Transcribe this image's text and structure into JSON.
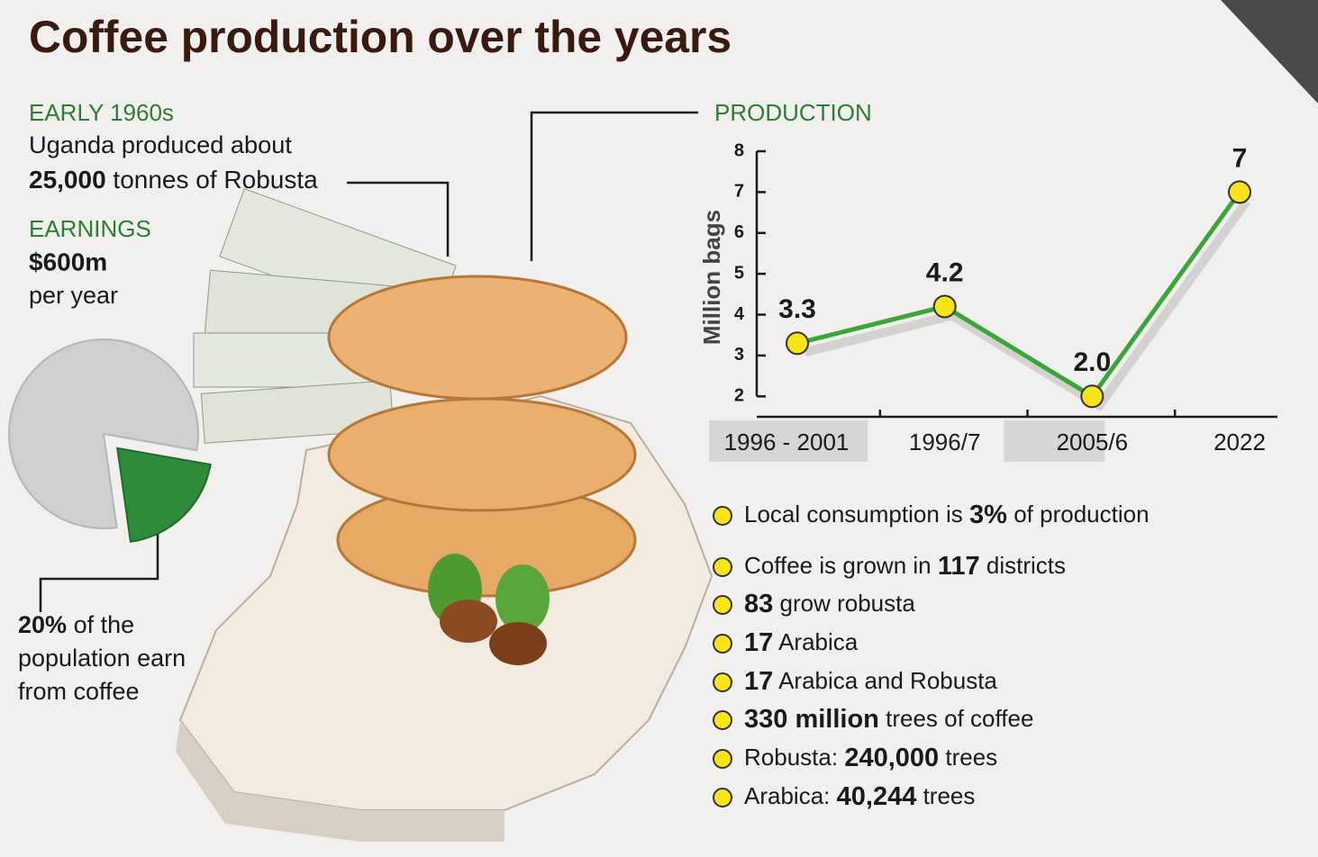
{
  "title": "Coffee production over the years",
  "early": {
    "heading": "EARLY 1960s",
    "line1": "Uganda produced about",
    "amount": "25,000",
    "line2": "tonnes of Robusta"
  },
  "earnings": {
    "heading": "EARNINGS",
    "amount": "$600m",
    "line": "per year"
  },
  "chart_data": [
    {
      "type": "pie",
      "values": [
        80,
        20
      ],
      "value_labels": [
        null,
        "20%"
      ],
      "colors": [
        "#cfcfcf",
        "#2e8b3a"
      ],
      "caption": [
        "of the",
        "population earn",
        "from coffee"
      ]
    },
    {
      "type": "line",
      "title": "PRODUCTION",
      "y_label": "Million bags",
      "categories": [
        "1996 - 2001",
        "1996/7",
        "2005/6",
        "2022"
      ],
      "series": [
        {
          "color": "#3aa63a",
          "values": [
            3.3,
            4.2,
            2.0,
            7
          ],
          "value_labels": [
            "3.3",
            "4.2",
            "2.0",
            "7"
          ]
        }
      ],
      "ylim": [
        1.5,
        8
      ],
      "yticks": [
        2,
        3,
        4,
        5,
        6,
        7,
        8
      ]
    }
  ],
  "facts": [
    {
      "before": "Local consumption is",
      "bold": "3%",
      "after": "of production"
    },
    {
      "before": "Coffee is grown in",
      "bold": "117",
      "after": "districts"
    },
    {
      "bold": "83",
      "after": "grow robusta"
    },
    {
      "bold": "17",
      "after": "Arabica"
    },
    {
      "bold": "17",
      "after": "Arabica and Robusta"
    },
    {
      "bold": "330 million",
      "after": "trees of coffee"
    },
    {
      "before": "Robusta:",
      "bold": "240,000",
      "after": "trees"
    },
    {
      "before": "Arabica:",
      "bold": "40,244",
      "after": "trees"
    }
  ]
}
